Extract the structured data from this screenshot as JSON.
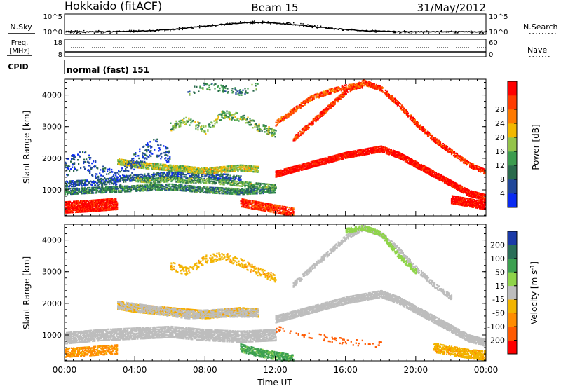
{
  "header": {
    "station": "Hokkaido (fitACF)",
    "beam": "Beam 15",
    "date": "31/May/2012"
  },
  "top_panels": {
    "nsky": {
      "label": "N.Sky",
      "tick_top": "10^5",
      "tick_bottom": "10^0",
      "right_label": "N.Search",
      "right_tick_top": "10^5",
      "right_tick_bottom": "10^0"
    },
    "freq": {
      "label_line1": "Freq.",
      "label_line2": "[MHz]",
      "tick_top": "18",
      "tick_bottom": "8",
      "right_label": "Nave",
      "right_tick_top": "60",
      "right_tick_bottom": "0"
    },
    "cpid": {
      "label": "CPID",
      "text": "normal (fast) 151"
    }
  },
  "x_axis": {
    "title": "Time UT",
    "ticks": [
      "00:00",
      "04:00",
      "08:00",
      "12:00",
      "16:00",
      "20:00",
      "00:00"
    ]
  },
  "colors": {
    "power_scale": [
      "#0a2bf2",
      "#21489a",
      "#2a6a4c",
      "#3c9c4e",
      "#94c44a",
      "#f2b800",
      "#ff7a00",
      "#ff3c00",
      "#ff0000"
    ],
    "velocity_scale": [
      "#ff0000",
      "#ff5a00",
      "#ff8c00",
      "#f2b400",
      "#bdbdbd",
      "#8fd44a",
      "#3ca050",
      "#2a6e58",
      "#1a3aa8"
    ]
  },
  "chart_data": [
    {
      "type": "heatmap",
      "name": "power",
      "ylabel": "Slant Range [km]",
      "ylim": [
        180,
        4500
      ],
      "yticks": [
        "1000",
        "2000",
        "3000",
        "4000"
      ],
      "xlabel": "Time UT",
      "xlim_hours": [
        0,
        24
      ],
      "colorbar": {
        "label": "Power [dB]",
        "ticks": [
          "4",
          "8",
          "12",
          "16",
          "20",
          "24",
          "28"
        ],
        "range": [
          0,
          32
        ]
      },
      "bands": [
        {
          "t": [
            0,
            1,
            2,
            3
          ],
          "r": [
            450,
            480,
            520,
            560
          ],
          "w": 350,
          "v": 30,
          "d": 0.7
        },
        {
          "t": [
            0,
            2,
            4,
            6,
            8,
            10,
            12
          ],
          "r": [
            950,
            1000,
            1050,
            1100,
            1000,
            950,
            1000
          ],
          "w": 180,
          "v": 10,
          "d": 0.55
        },
        {
          "t": [
            0,
            2,
            4,
            6,
            8,
            10
          ],
          "r": [
            1200,
            1250,
            1400,
            1500,
            1450,
            1400
          ],
          "w": 200,
          "v": 6,
          "d": 0.35
        },
        {
          "t": [
            3,
            4,
            5,
            6,
            7,
            8,
            9,
            10,
            11
          ],
          "r": [
            1900,
            1800,
            1750,
            1700,
            1650,
            1600,
            1650,
            1700,
            1650
          ],
          "w": 180,
          "v": 17,
          "d": 0.6
        },
        {
          "t": [
            4,
            5,
            6,
            7,
            8,
            9,
            10,
            11,
            12
          ],
          "r": [
            1350,
            1300,
            1350,
            1300,
            1300,
            1250,
            1200,
            1150,
            1100
          ],
          "w": 160,
          "v": 13,
          "d": 0.45
        },
        {
          "t": [
            10,
            11,
            12,
            13
          ],
          "r": [
            600,
            500,
            400,
            300
          ],
          "w": 250,
          "v": 28,
          "d": 0.55
        },
        {
          "t": [
            12,
            13,
            14,
            15,
            16,
            17,
            18,
            19,
            20,
            21,
            22,
            23,
            24
          ],
          "r": [
            1500,
            1650,
            1800,
            1950,
            2100,
            2200,
            2300,
            2100,
            1800,
            1500,
            1200,
            900,
            750
          ],
          "w": 180,
          "v": 31,
          "d": 0.75
        },
        {
          "t": [
            13,
            14,
            15,
            16,
            17,
            18,
            19,
            20,
            21,
            22,
            23,
            24
          ],
          "r": [
            2600,
            3100,
            3600,
            4100,
            4400,
            4200,
            3700,
            3100,
            2600,
            2200,
            1800,
            1550
          ],
          "w": 140,
          "v": 28,
          "d": 0.55
        },
        {
          "t": [
            12,
            13,
            14,
            15,
            16,
            17
          ],
          "r": [
            3100,
            3500,
            3900,
            4100,
            4250,
            4300
          ],
          "w": 140,
          "v": 26,
          "d": 0.45
        },
        {
          "t": [
            22,
            23,
            24
          ],
          "r": [
            700,
            600,
            500
          ],
          "w": 250,
          "v": 31,
          "d": 0.7
        },
        {
          "t": [
            6,
            7,
            8,
            9,
            10,
            11,
            12
          ],
          "r": [
            3000,
            3200,
            2900,
            3400,
            3300,
            3000,
            2800
          ],
          "w": 260,
          "v": 14,
          "d": 0.22
        },
        {
          "t": [
            7,
            8,
            9,
            10,
            11
          ],
          "r": [
            4100,
            4300,
            4200,
            4100,
            4300
          ],
          "w": 220,
          "v": 10,
          "d": 0.12
        },
        {
          "t": [
            0,
            1,
            2,
            3,
            4,
            5,
            6
          ],
          "r": [
            1700,
            2000,
            1500,
            1300,
            1900,
            2400,
            2100
          ],
          "w": 550,
          "v": 5,
          "d": 0.12
        }
      ]
    },
    {
      "type": "heatmap",
      "name": "velocity",
      "ylabel": "Slant Range [km]",
      "ylim": [
        180,
        4500
      ],
      "yticks": [
        "1000",
        "2000",
        "3000",
        "4000"
      ],
      "xlabel": "Time UT",
      "xlim_hours": [
        0,
        24
      ],
      "colorbar": {
        "label": "Velocity [m s^-1]",
        "ticks": [
          "-200",
          "-100",
          "-50",
          "-15",
          "15",
          "50",
          "100",
          "200"
        ],
        "range": [
          -250,
          250
        ]
      },
      "bands": [
        {
          "t": [
            0,
            2,
            4,
            6,
            8,
            10,
            12
          ],
          "r": [
            900,
            1000,
            1050,
            1100,
            1000,
            950,
            1000
          ],
          "w": 350,
          "v": 0,
          "d": 0.6
        },
        {
          "t": [
            3,
            4,
            5,
            6,
            7,
            8,
            9,
            10,
            11
          ],
          "r": [
            1950,
            1850,
            1800,
            1750,
            1700,
            1650,
            1700,
            1750,
            1700
          ],
          "w": 260,
          "v": -40,
          "d": 0.55
        },
        {
          "t": [
            3,
            5,
            7,
            9,
            11
          ],
          "r": [
            1950,
            1800,
            1650,
            1700,
            1700
          ],
          "w": 260,
          "v": 0,
          "d": 0.35
        },
        {
          "t": [
            12,
            13,
            14,
            15,
            16,
            17,
            18,
            19,
            20,
            21,
            22,
            23,
            24
          ],
          "r": [
            1500,
            1650,
            1800,
            1950,
            2100,
            2200,
            2300,
            2100,
            1800,
            1500,
            1200,
            900,
            750
          ],
          "w": 220,
          "v": 0,
          "d": 0.7
        },
        {
          "t": [
            13,
            14,
            15,
            16,
            17,
            18,
            19,
            20,
            21,
            22
          ],
          "r": [
            2600,
            3100,
            3600,
            4100,
            4400,
            4200,
            3700,
            3100,
            2600,
            2200
          ],
          "w": 170,
          "v": 0,
          "d": 0.45
        },
        {
          "t": [
            16,
            17,
            18,
            19,
            20
          ],
          "r": [
            4300,
            4400,
            4200,
            3500,
            3000
          ],
          "w": 150,
          "v": 30,
          "d": 0.45
        },
        {
          "t": [
            10,
            11,
            12,
            13
          ],
          "r": [
            600,
            450,
            350,
            250
          ],
          "w": 260,
          "v": 60,
          "d": 0.5
        },
        {
          "t": [
            0,
            1,
            2,
            3
          ],
          "r": [
            450,
            480,
            520,
            560
          ],
          "w": 300,
          "v": -60,
          "d": 0.4
        },
        {
          "t": [
            21,
            22,
            23,
            24
          ],
          "r": [
            600,
            500,
            400,
            350
          ],
          "w": 280,
          "v": -40,
          "d": 0.55
        },
        {
          "t": [
            6,
            7,
            8,
            9,
            10,
            11,
            12
          ],
          "r": [
            3200,
            3000,
            3400,
            3500,
            3300,
            3000,
            2800
          ],
          "w": 260,
          "v": -40,
          "d": 0.2
        },
        {
          "t": [
            12,
            14,
            16,
            18
          ],
          "r": [
            1200,
            1000,
            800,
            700
          ],
          "w": 200,
          "v": -180,
          "d": 0.08
        }
      ]
    }
  ]
}
